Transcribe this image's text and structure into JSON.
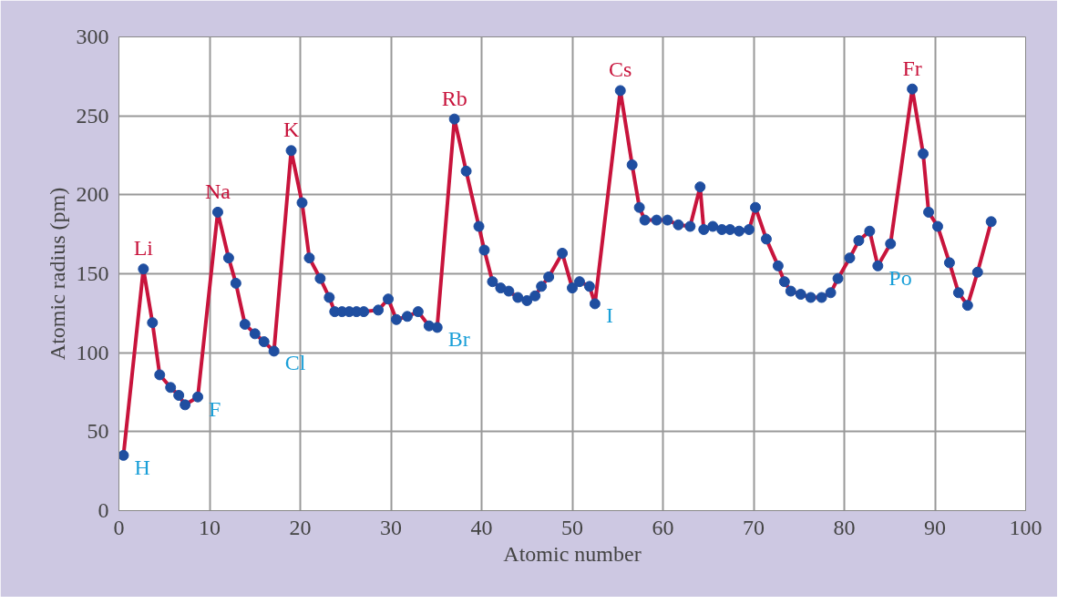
{
  "chart_data": {
    "type": "line",
    "xlabel": "Atomic number",
    "ylabel": "Atomic radius (pm)",
    "xlim": [
      0,
      100
    ],
    "xticks": [
      0,
      10,
      20,
      30,
      40,
      50,
      60,
      70,
      80,
      90,
      100
    ],
    "ylim": [
      0,
      300
    ],
    "yticks": [
      0,
      50,
      100,
      150,
      200,
      250,
      300
    ],
    "grid": true,
    "marker": "circle",
    "line_style": "solid",
    "x": [
      0.5,
      2.7,
      3.7,
      4.5,
      5.7,
      6.6,
      7.3,
      8.7,
      10.9,
      12.1,
      12.9,
      13.9,
      15.0,
      16.0,
      17.1,
      19.0,
      20.2,
      21.0,
      22.2,
      23.2,
      23.8,
      24.6,
      25.4,
      26.2,
      27.0,
      28.6,
      29.7,
      30.6,
      31.8,
      33.0,
      34.2,
      35.1,
      37.0,
      38.3,
      39.7,
      40.3,
      41.2,
      42.1,
      43.0,
      44.0,
      45.0,
      45.9,
      46.6,
      47.4,
      48.9,
      50.0,
      50.8,
      51.9,
      52.5,
      55.3,
      56.6,
      57.4,
      58.0,
      59.3,
      60.5,
      61.7,
      63.0,
      64.1,
      64.5,
      65.5,
      66.5,
      67.4,
      68.4,
      69.5,
      70.2,
      71.4,
      72.7,
      73.4,
      74.1,
      75.2,
      76.3,
      77.5,
      78.5,
      79.3,
      80.6,
      81.6,
      82.8,
      83.7,
      85.1,
      87.5,
      88.7,
      89.3,
      90.3,
      91.6,
      92.6,
      93.6,
      94.7,
      96.2
    ],
    "series": [
      {
        "color": "#c8143c",
        "values": [
          35,
          153,
          119,
          86,
          78,
          73,
          67,
          72,
          189,
          160,
          144,
          118,
          112,
          107,
          101,
          228,
          195,
          160,
          147,
          135,
          126,
          126,
          126,
          126,
          126,
          127,
          134,
          121,
          123,
          126,
          117,
          116,
          248,
          215,
          180,
          165,
          145,
          141,
          139,
          135,
          133,
          136,
          142,
          148,
          163,
          141,
          145,
          142,
          131,
          266,
          219,
          192,
          184,
          184,
          184,
          181,
          180,
          205,
          178,
          180,
          178,
          178,
          177,
          178,
          192,
          172,
          155,
          145,
          139,
          137,
          135,
          135,
          138,
          147,
          160,
          171,
          177,
          155,
          169,
          267,
          226,
          189,
          180,
          157,
          138,
          130,
          151,
          183
        ]
      }
    ],
    "annotations": [
      {
        "text": "H",
        "x": 0.5,
        "y": 35
      },
      {
        "text": "Li",
        "x": 2.7,
        "y": 153
      },
      {
        "text": "F",
        "x": 8.7,
        "y": 72
      },
      {
        "text": "Na",
        "x": 10.9,
        "y": 189
      },
      {
        "text": "Cl",
        "x": 17.1,
        "y": 101
      },
      {
        "text": "K",
        "x": 19.0,
        "y": 228
      },
      {
        "text": "Br",
        "x": 35.1,
        "y": 116
      },
      {
        "text": "Rb",
        "x": 37.0,
        "y": 248
      },
      {
        "text": "I",
        "x": 52.5,
        "y": 131
      },
      {
        "text": "Cs",
        "x": 55.3,
        "y": 266
      },
      {
        "text": "Po",
        "x": 83.7,
        "y": 155
      },
      {
        "text": "Fr",
        "x": 87.5,
        "y": 267
      }
    ]
  }
}
